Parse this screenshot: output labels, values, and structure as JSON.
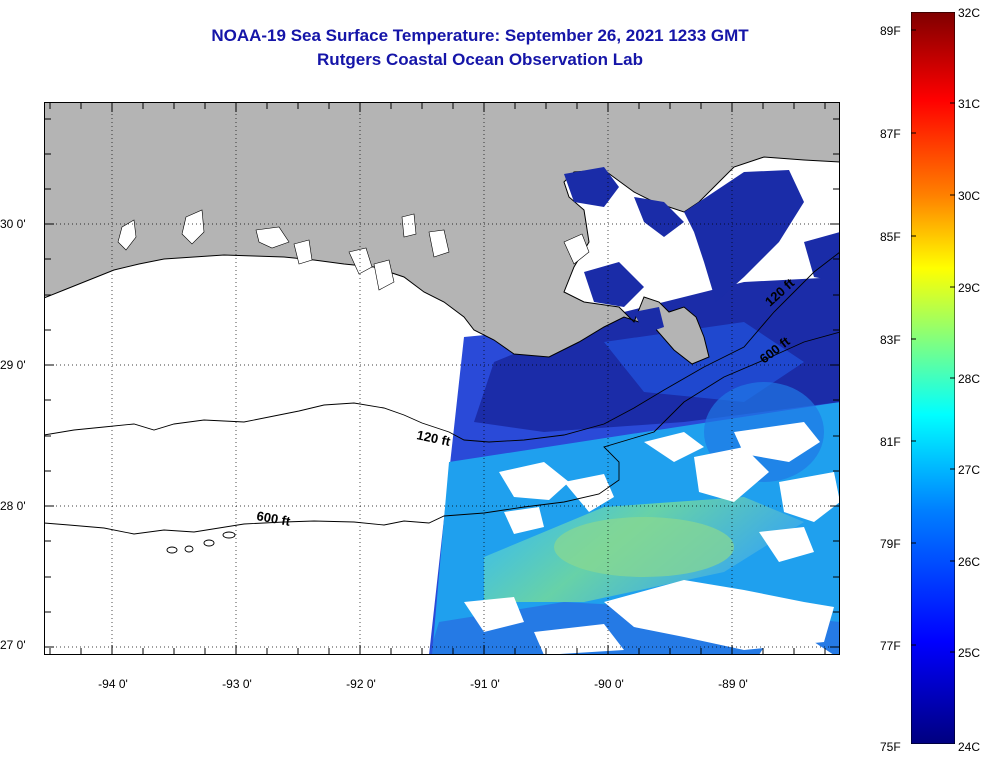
{
  "title": {
    "line1": "NOAA-19 Sea Surface Temperature:  September 26, 2021 1233 GMT",
    "line2": "Rutgers Coastal Ocean Observation Lab"
  },
  "map": {
    "lat_labels": [
      "30 0'",
      "29 0'",
      "28 0'",
      "27 0'"
    ],
    "lon_labels": [
      "-94 0'",
      "-93 0'",
      "-92 0'",
      "-91 0'",
      "-90 0'",
      "-89 0'"
    ],
    "contour_labels": {
      "west_120": "120 ft",
      "west_600": "600 ft",
      "east_120": "120 ft",
      "east_600": "600 ft"
    },
    "land_color": "#b4b4b4",
    "ocean_nodata_color": "#ffffff"
  },
  "colorbar": {
    "fahrenheit_labels": [
      "89F",
      "87F",
      "85F",
      "83F",
      "81F",
      "79F",
      "77F",
      "75F"
    ],
    "celsius_labels": [
      "32C",
      "31C",
      "30C",
      "29C",
      "28C",
      "27C",
      "26C",
      "25C",
      "24C"
    ],
    "range_c": [
      24,
      32
    ],
    "colors": [
      "#000080",
      "#0000ff",
      "#0080ff",
      "#00ffff",
      "#80ff80",
      "#ffff00",
      "#ff8000",
      "#ff0000",
      "#800000"
    ]
  }
}
